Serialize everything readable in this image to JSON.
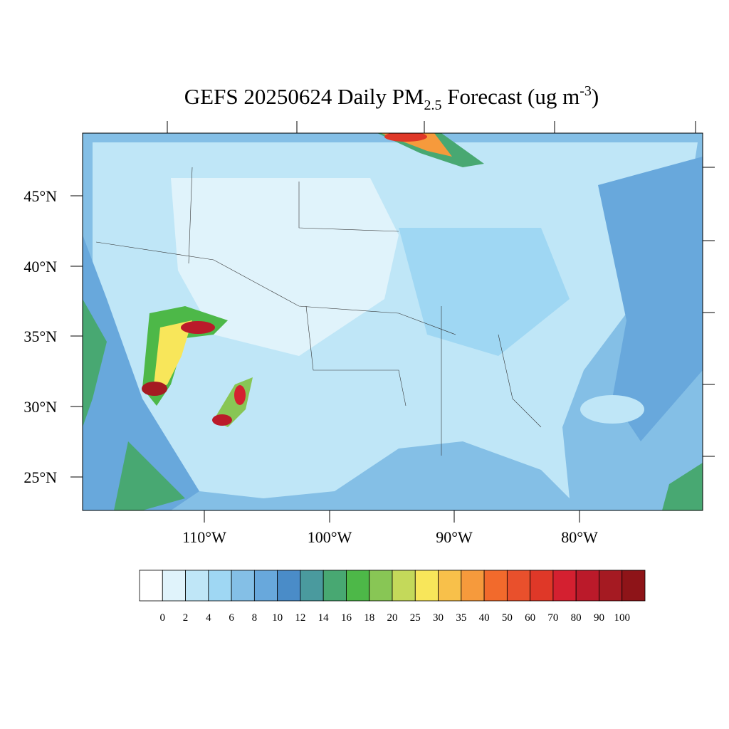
{
  "title": {
    "main": "GEFS 20250624 Daily PM",
    "sub": "2.5",
    "mid": " Forecast (ug m",
    "sup": "-3",
    "end": ")"
  },
  "lat_labels": [
    "45°N",
    "40°N",
    "35°N",
    "30°N",
    "25°N"
  ],
  "lon_labels": [
    "110°W",
    "100°W",
    "90°W",
    "80°W"
  ],
  "colorbar": {
    "levels": [
      0,
      2,
      4,
      6,
      8,
      10,
      12,
      14,
      16,
      18,
      20,
      25,
      30,
      35,
      40,
      50,
      60,
      70,
      80,
      90,
      100
    ],
    "colors": [
      "#ffffff",
      "#e0f3fb",
      "#bfe6f7",
      "#9fd7f3",
      "#84bfe6",
      "#68a8dc",
      "#4a8cc8",
      "#4a9a9e",
      "#48a872",
      "#4db848",
      "#88c655",
      "#c4d95a",
      "#f8e65a",
      "#f8c04a",
      "#f69a3c",
      "#f26a2c",
      "#e9502c",
      "#df3828",
      "#d42030",
      "#bb1a2a",
      "#a51a22",
      "#8e1418"
    ]
  }
}
